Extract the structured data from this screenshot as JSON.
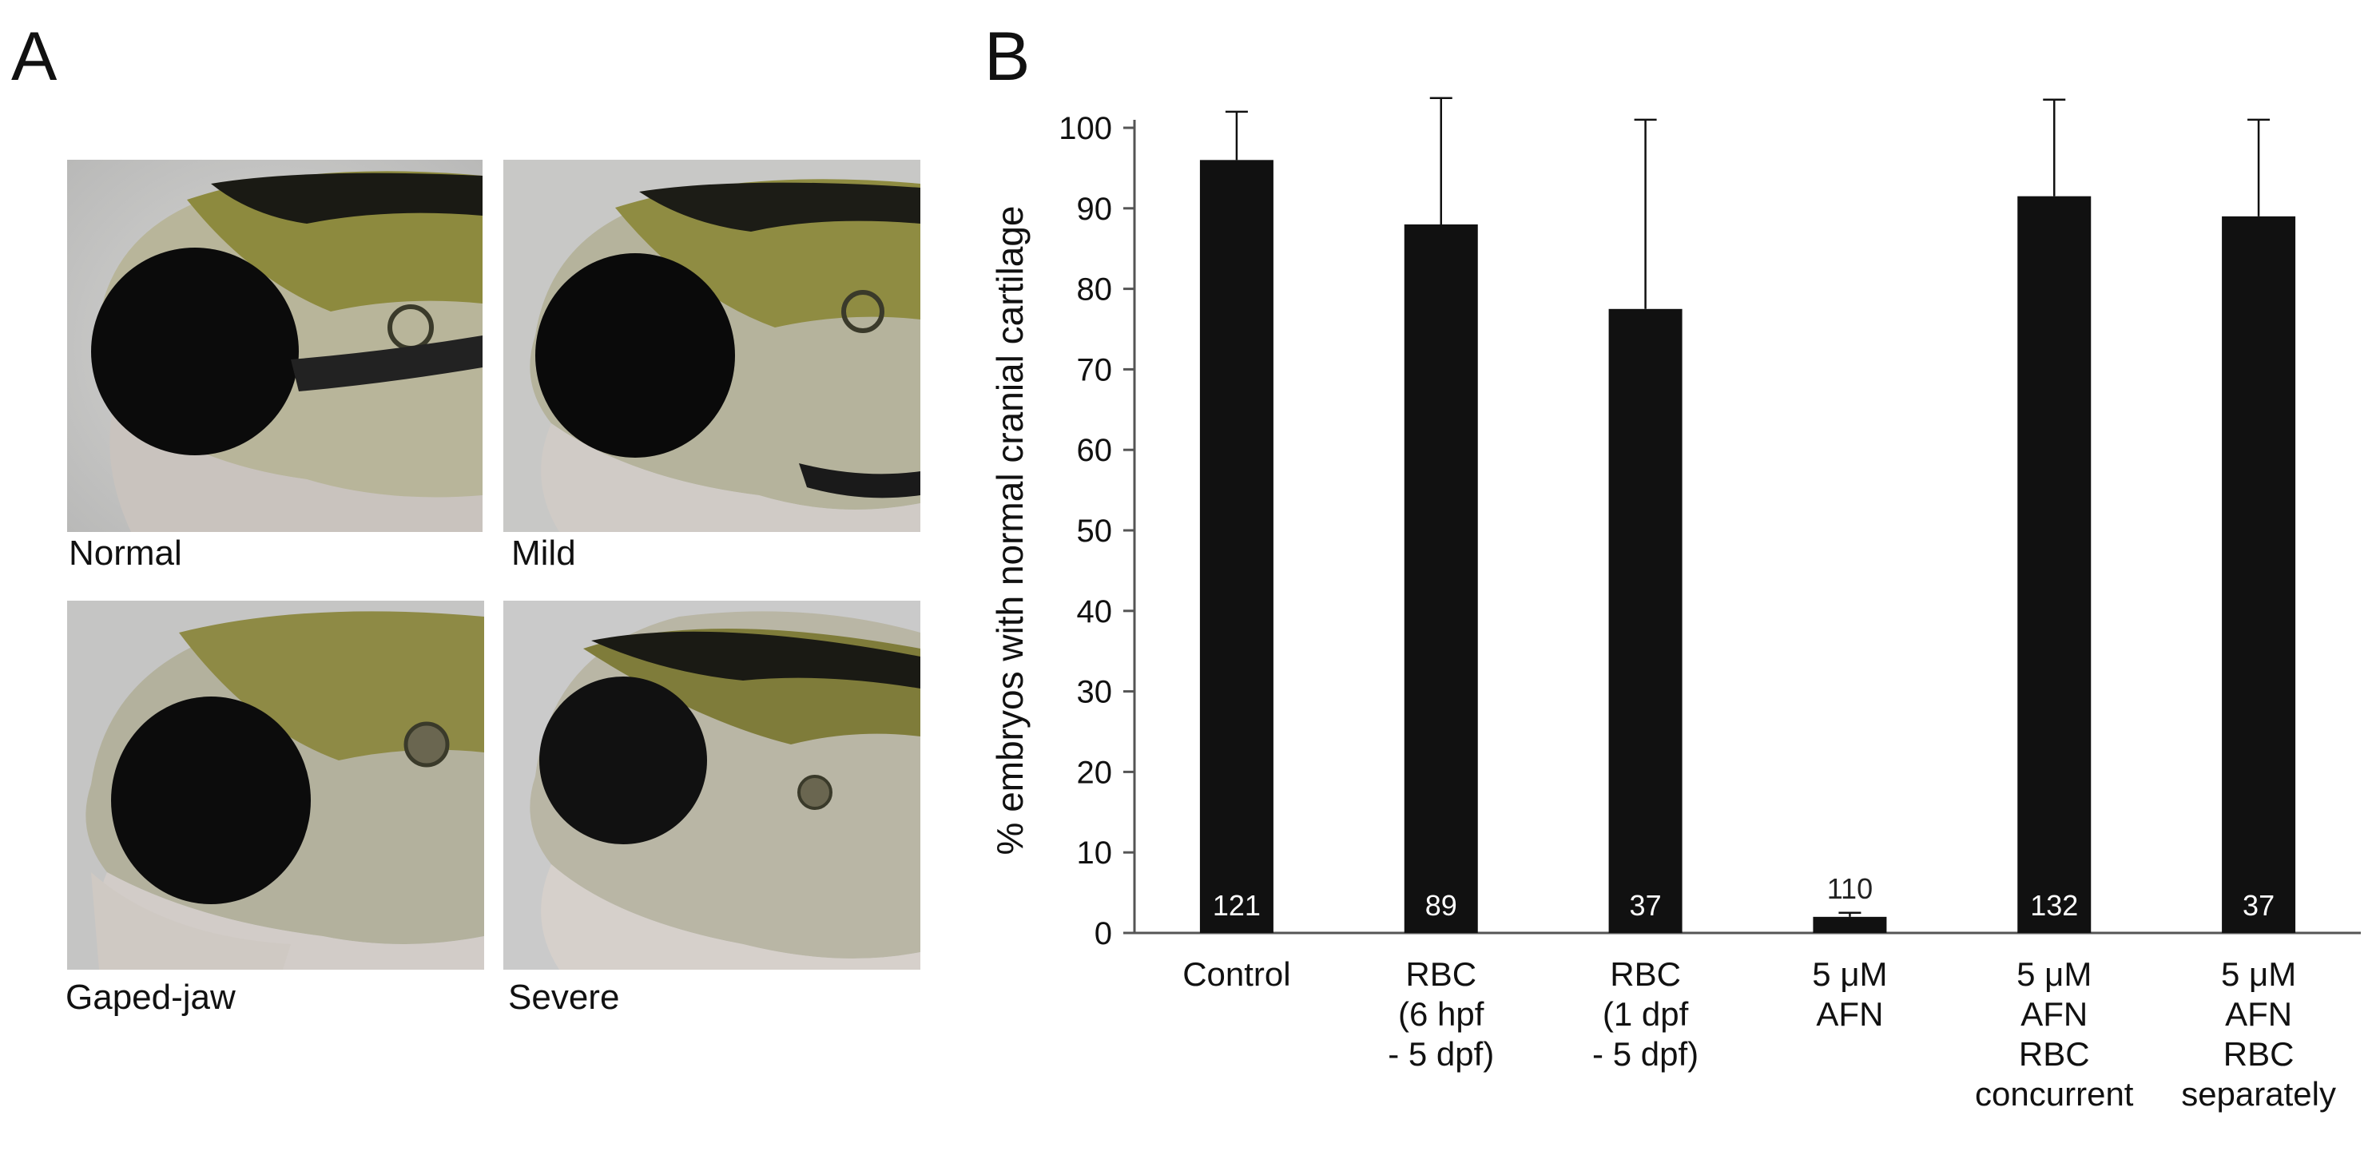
{
  "panel_a": {
    "letter": "A",
    "photos": [
      {
        "label": "Normal"
      },
      {
        "label": "Mild"
      },
      {
        "label": "Gaped-jaw"
      },
      {
        "label": "Severe"
      }
    ]
  },
  "panel_b": {
    "letter": "B"
  },
  "chart_data": {
    "type": "bar",
    "ylabel": "% embryos with normal cranial cartilage",
    "ylim": [
      0,
      100
    ],
    "yticks": [
      0,
      10,
      20,
      30,
      40,
      50,
      60,
      70,
      80,
      90,
      100
    ],
    "grid": false,
    "categories": [
      [
        "Control"
      ],
      [
        "RBC",
        "(6 hpf",
        "- 5 dpf)"
      ],
      [
        "RBC",
        "(1 dpf",
        "- 5 dpf)"
      ],
      [
        "5 μM",
        "AFN"
      ],
      [
        "5  μM",
        "AFN",
        "RBC",
        "concurrent"
      ],
      [
        "5  μM",
        "AFN",
        "RBC",
        "separately"
      ]
    ],
    "values": [
      96,
      88,
      77.5,
      2,
      91.5,
      89
    ],
    "error_upper": [
      6,
      15.7,
      23.5,
      0.5,
      12,
      12
    ],
    "n_labels": [
      "121",
      "89",
      "37",
      "110",
      "132",
      "37"
    ],
    "bar_color": "#111111"
  }
}
